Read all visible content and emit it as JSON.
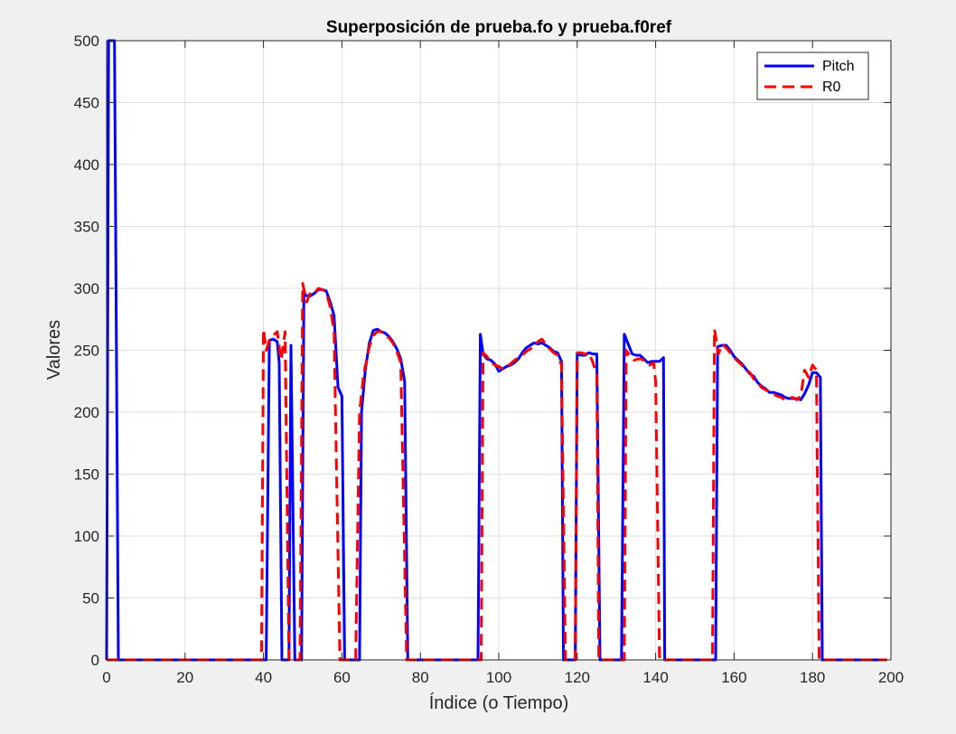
{
  "chart_data": {
    "type": "line",
    "title": "Superposición de prueba.fo y prueba.f0ref",
    "xlabel": "Índice (o Tiempo)",
    "ylabel": "Valores",
    "xlim": [
      0,
      200
    ],
    "ylim": [
      0,
      500
    ],
    "xticks": [
      0,
      20,
      40,
      60,
      80,
      100,
      120,
      140,
      160,
      180,
      200
    ],
    "yticks": [
      0,
      50,
      100,
      150,
      200,
      250,
      300,
      350,
      400,
      450,
      500
    ],
    "grid": true,
    "legend_position": "top-right",
    "series": [
      {
        "name": "Pitch",
        "color": "#0000ff",
        "style": "solid",
        "points": [
          [
            0,
            0
          ],
          [
            0.5,
            500
          ],
          [
            2,
            500
          ],
          [
            3,
            0
          ],
          [
            40.7,
            0
          ],
          [
            41.5,
            258
          ],
          [
            42.5,
            259
          ],
          [
            43.5,
            257
          ],
          [
            44,
            240
          ],
          [
            44.7,
            0
          ],
          [
            46.5,
            0
          ],
          [
            47,
            254
          ],
          [
            48,
            0
          ],
          [
            49.7,
            0
          ],
          [
            50.3,
            296
          ],
          [
            51,
            294
          ],
          [
            52,
            294
          ],
          [
            53,
            296
          ],
          [
            54,
            299
          ],
          [
            55,
            299
          ],
          [
            56,
            298
          ],
          [
            57,
            289
          ],
          [
            58,
            278
          ],
          [
            59,
            220
          ],
          [
            60,
            213
          ],
          [
            60.7,
            0
          ],
          [
            64.5,
            0
          ],
          [
            65,
            200
          ],
          [
            66,
            235
          ],
          [
            67,
            256
          ],
          [
            68,
            266
          ],
          [
            69,
            267
          ],
          [
            70,
            265
          ],
          [
            71,
            264
          ],
          [
            72,
            261
          ],
          [
            73,
            257
          ],
          [
            74,
            251
          ],
          [
            75,
            243
          ],
          [
            76,
            225
          ],
          [
            76.8,
            0
          ],
          [
            94.7,
            0
          ],
          [
            95.3,
            263
          ],
          [
            96,
            247
          ],
          [
            97,
            243
          ],
          [
            98,
            242
          ],
          [
            99,
            239
          ],
          [
            100,
            233
          ],
          [
            101,
            235
          ],
          [
            102,
            237
          ],
          [
            103,
            238
          ],
          [
            104,
            240
          ],
          [
            105,
            243
          ],
          [
            106,
            248
          ],
          [
            107,
            252
          ],
          [
            108,
            254
          ],
          [
            109,
            256
          ],
          [
            110,
            255
          ],
          [
            111,
            256
          ],
          [
            112,
            254
          ],
          [
            113,
            252
          ],
          [
            114,
            249
          ],
          [
            115,
            248
          ],
          [
            116,
            241
          ],
          [
            116.5,
            0
          ],
          [
            119.5,
            0
          ],
          [
            120,
            247
          ],
          [
            121,
            246
          ],
          [
            122,
            246
          ],
          [
            123,
            248
          ],
          [
            124,
            247
          ],
          [
            125,
            247
          ],
          [
            125.8,
            0
          ],
          [
            131.3,
            0
          ],
          [
            132,
            263
          ],
          [
            133,
            255
          ],
          [
            134,
            247
          ],
          [
            135,
            246
          ],
          [
            136,
            246
          ],
          [
            137,
            243
          ],
          [
            138,
            240
          ],
          [
            139,
            241
          ],
          [
            140,
            241
          ],
          [
            141,
            241
          ],
          [
            142,
            244
          ],
          [
            142.3,
            0
          ],
          [
            155.3,
            0
          ],
          [
            155.8,
            253
          ],
          [
            157,
            254
          ],
          [
            158,
            254
          ],
          [
            159,
            250
          ],
          [
            160,
            245
          ],
          [
            161,
            242
          ],
          [
            162,
            239
          ],
          [
            163,
            235
          ],
          [
            164,
            231
          ],
          [
            165,
            229
          ],
          [
            166,
            224
          ],
          [
            167,
            221
          ],
          [
            168,
            219
          ],
          [
            169,
            216
          ],
          [
            170,
            216
          ],
          [
            171,
            215
          ],
          [
            172,
            214
          ],
          [
            173,
            212
          ],
          [
            174,
            211
          ],
          [
            175,
            211
          ],
          [
            176,
            211
          ],
          [
            177,
            210
          ],
          [
            178,
            215
          ],
          [
            179,
            222
          ],
          [
            180,
            232
          ],
          [
            181,
            232
          ],
          [
            182,
            228
          ],
          [
            182.5,
            0
          ],
          [
            199,
            0
          ]
        ]
      },
      {
        "name": "R0",
        "color": "#ff0000",
        "style": "dashed",
        "points": [
          [
            0,
            0
          ],
          [
            39.5,
            0
          ],
          [
            40,
            267
          ],
          [
            40.7,
            250
          ],
          [
            41.5,
            258
          ],
          [
            42.5,
            262
          ],
          [
            43.5,
            265
          ],
          [
            44.5,
            242
          ],
          [
            45.5,
            265
          ],
          [
            46.5,
            0
          ],
          [
            49.3,
            0
          ],
          [
            50,
            304
          ],
          [
            51,
            289
          ],
          [
            52,
            297
          ],
          [
            53,
            296
          ],
          [
            54,
            300
          ],
          [
            55,
            299
          ],
          [
            56,
            297
          ],
          [
            57,
            285
          ],
          [
            58,
            265
          ],
          [
            59.5,
            0
          ],
          [
            63.5,
            0
          ],
          [
            64.5,
            200
          ],
          [
            65.5,
            230
          ],
          [
            67,
            253
          ],
          [
            68,
            262
          ],
          [
            69,
            265
          ],
          [
            70,
            265
          ],
          [
            71,
            262
          ],
          [
            72,
            260
          ],
          [
            73,
            256
          ],
          [
            74,
            249
          ],
          [
            75,
            240
          ],
          [
            76.5,
            0
          ],
          [
            95.5,
            0
          ],
          [
            96,
            248
          ],
          [
            97,
            245
          ],
          [
            98,
            240
          ],
          [
            99,
            238
          ],
          [
            100,
            237
          ],
          [
            101,
            235
          ],
          [
            102,
            237
          ],
          [
            103,
            239
          ],
          [
            104,
            242
          ],
          [
            105,
            244
          ],
          [
            106,
            246
          ],
          [
            107,
            249
          ],
          [
            108,
            251
          ],
          [
            109,
            253
          ],
          [
            110,
            257
          ],
          [
            111,
            259
          ],
          [
            112,
            255
          ],
          [
            113,
            251
          ],
          [
            114,
            248
          ],
          [
            115,
            246
          ],
          [
            116,
            238
          ],
          [
            117,
            0
          ],
          [
            119.5,
            0
          ],
          [
            120,
            248
          ],
          [
            121,
            248
          ],
          [
            122,
            247
          ],
          [
            123,
            248
          ],
          [
            124,
            240
          ],
          [
            125,
            230
          ],
          [
            125.5,
            0
          ],
          [
            132,
            0
          ],
          [
            132.5,
            250
          ],
          [
            133.5,
            245
          ],
          [
            134.5,
            242
          ],
          [
            135.5,
            243
          ],
          [
            136.5,
            243
          ],
          [
            137.5,
            240
          ],
          [
            138.5,
            238
          ],
          [
            139.5,
            240
          ],
          [
            140,
            225
          ],
          [
            141,
            0
          ],
          [
            154.5,
            0
          ],
          [
            155,
            267
          ],
          [
            156,
            247
          ],
          [
            157,
            255
          ],
          [
            158,
            252
          ],
          [
            159,
            248
          ],
          [
            160,
            244
          ],
          [
            161,
            241
          ],
          [
            162,
            238
          ],
          [
            163,
            234
          ],
          [
            164,
            232
          ],
          [
            165,
            227
          ],
          [
            166,
            224
          ],
          [
            167,
            220
          ],
          [
            168,
            218
          ],
          [
            169,
            217
          ],
          [
            170,
            215
          ],
          [
            171,
            213
          ],
          [
            172,
            212
          ],
          [
            173,
            210
          ],
          [
            174,
            211
          ],
          [
            175,
            212
          ],
          [
            176,
            210
          ],
          [
            177,
            213
          ],
          [
            178,
            234
          ],
          [
            179,
            228
          ],
          [
            180,
            238
          ],
          [
            181,
            234
          ],
          [
            181.7,
            0
          ],
          [
            199,
            0
          ]
        ]
      }
    ]
  }
}
